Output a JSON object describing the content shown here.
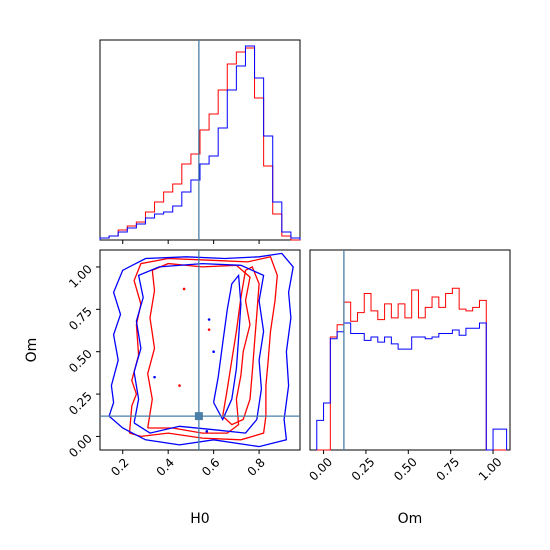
{
  "chart_data": [
    {
      "type": "histogram",
      "panel": "top-left",
      "parameter": "H0",
      "x_range": [
        0.1,
        0.98
      ],
      "truth_line": 0.535,
      "bin_edges": [
        0.1,
        0.14,
        0.18,
        0.22,
        0.26,
        0.3,
        0.34,
        0.38,
        0.42,
        0.46,
        0.5,
        0.54,
        0.58,
        0.62,
        0.66,
        0.7,
        0.74,
        0.78,
        0.82,
        0.86,
        0.9,
        0.94,
        0.98
      ],
      "series": [
        {
          "color": "#ff0000",
          "values": [
            0.01,
            0.02,
            0.05,
            0.07,
            0.09,
            0.14,
            0.19,
            0.24,
            0.28,
            0.38,
            0.43,
            0.55,
            0.63,
            0.75,
            0.88,
            0.94,
            0.96,
            0.71,
            0.37,
            0.13,
            0.02,
            0.0
          ]
        },
        {
          "color": "#0000ff",
          "values": [
            0.01,
            0.02,
            0.04,
            0.06,
            0.08,
            0.11,
            0.13,
            0.14,
            0.17,
            0.24,
            0.3,
            0.38,
            0.42,
            0.56,
            0.75,
            0.87,
            0.97,
            0.81,
            0.52,
            0.19,
            0.04,
            0.01
          ]
        }
      ]
    },
    {
      "type": "contour",
      "panel": "bottom-left",
      "x_param": "H0",
      "y_param": "Om",
      "x_range": [
        0.1,
        0.98
      ],
      "y_range": [
        -0.08,
        1.1
      ],
      "xticks": [
        "0.2",
        "0.4",
        "0.6",
        "0.8"
      ],
      "yticks": [
        "0.00",
        "0.25",
        "0.50",
        "0.75",
        "1.00"
      ],
      "xlabel": "H0",
      "ylabel": "Om",
      "truth_point": [
        0.535,
        0.12
      ],
      "series": [
        {
          "color": "#ff0000",
          "contours": [
            [
              [
                0.23,
                0.02
              ],
              [
                0.24,
                0.18
              ],
              [
                0.26,
                0.25
              ],
              [
                0.24,
                0.33
              ],
              [
                0.27,
                0.48
              ],
              [
                0.26,
                0.66
              ],
              [
                0.28,
                0.78
              ],
              [
                0.25,
                0.92
              ],
              [
                0.28,
                1.02
              ],
              [
                0.4,
                1.05
              ],
              [
                0.58,
                1.04
              ],
              [
                0.75,
                1.03
              ],
              [
                0.85,
                1.06
              ],
              [
                0.88,
                0.95
              ],
              [
                0.87,
                0.8
              ],
              [
                0.85,
                0.62
              ],
              [
                0.84,
                0.45
              ],
              [
                0.83,
                0.3
              ],
              [
                0.83,
                0.12
              ],
              [
                0.82,
                0.02
              ],
              [
                0.72,
                -0.02
              ],
              [
                0.55,
                -0.01
              ],
              [
                0.4,
                0.02
              ],
              [
                0.28,
                0.0
              ],
              [
                0.23,
                0.02
              ]
            ],
            [
              [
                0.31,
                0.05
              ],
              [
                0.33,
                0.22
              ],
              [
                0.31,
                0.37
              ],
              [
                0.34,
                0.52
              ],
              [
                0.32,
                0.7
              ],
              [
                0.34,
                0.86
              ],
              [
                0.33,
                0.98
              ],
              [
                0.4,
                1.02
              ],
              [
                0.55,
                1.0
              ],
              [
                0.7,
                1.01
              ],
              [
                0.76,
                0.94
              ],
              [
                0.74,
                0.8
              ],
              [
                0.76,
                0.66
              ],
              [
                0.73,
                0.5
              ],
              [
                0.72,
                0.36
              ],
              [
                0.7,
                0.22
              ],
              [
                0.71,
                0.07
              ],
              [
                0.66,
                0.02
              ],
              [
                0.55,
                0.02
              ],
              [
                0.42,
                0.05
              ],
              [
                0.31,
                0.05
              ]
            ],
            [
              [
                0.64,
                0.12
              ],
              [
                0.66,
                0.28
              ],
              [
                0.68,
                0.45
              ],
              [
                0.7,
                0.62
              ],
              [
                0.72,
                0.82
              ],
              [
                0.74,
                0.98
              ],
              [
                0.77,
                1.0
              ],
              [
                0.8,
                0.9
              ],
              [
                0.79,
                0.72
              ],
              [
                0.78,
                0.55
              ],
              [
                0.77,
                0.38
              ],
              [
                0.76,
                0.22
              ],
              [
                0.73,
                0.1
              ],
              [
                0.68,
                0.07
              ],
              [
                0.64,
                0.12
              ]
            ]
          ]
        },
        {
          "color": "#0000ff",
          "contours": [
            [
              [
                0.14,
                0.12
              ],
              [
                0.16,
                0.2
              ],
              [
                0.15,
                0.3
              ],
              [
                0.18,
                0.45
              ],
              [
                0.16,
                0.6
              ],
              [
                0.19,
                0.72
              ],
              [
                0.16,
                0.85
              ],
              [
                0.2,
                0.98
              ],
              [
                0.3,
                1.05
              ],
              [
                0.48,
                1.06
              ],
              [
                0.65,
                1.05
              ],
              [
                0.8,
                1.06
              ],
              [
                0.9,
                1.08
              ],
              [
                0.95,
                1.0
              ],
              [
                0.93,
                0.85
              ],
              [
                0.94,
                0.7
              ],
              [
                0.92,
                0.5
              ],
              [
                0.93,
                0.3
              ],
              [
                0.91,
                0.1
              ],
              [
                0.92,
                -0.02
              ],
              [
                0.8,
                -0.06
              ],
              [
                0.6,
                -0.02
              ],
              [
                0.45,
                -0.05
              ],
              [
                0.3,
                -0.02
              ],
              [
                0.2,
                0.05
              ],
              [
                0.14,
                0.12
              ]
            ],
            [
              [
                0.25,
                0.08
              ],
              [
                0.27,
                0.22
              ],
              [
                0.25,
                0.38
              ],
              [
                0.28,
                0.52
              ],
              [
                0.26,
                0.68
              ],
              [
                0.29,
                0.82
              ],
              [
                0.27,
                0.95
              ],
              [
                0.36,
                1.0
              ],
              [
                0.55,
                1.02
              ],
              [
                0.72,
                1.01
              ],
              [
                0.82,
                0.95
              ],
              [
                0.8,
                0.8
              ],
              [
                0.82,
                0.62
              ],
              [
                0.8,
                0.45
              ],
              [
                0.81,
                0.28
              ],
              [
                0.79,
                0.1
              ],
              [
                0.74,
                0.02
              ],
              [
                0.6,
                0.04
              ],
              [
                0.45,
                0.06
              ],
              [
                0.32,
                0.02
              ],
              [
                0.25,
                0.08
              ]
            ],
            [
              [
                0.6,
                0.2
              ],
              [
                0.62,
                0.35
              ],
              [
                0.64,
                0.55
              ],
              [
                0.66,
                0.75
              ],
              [
                0.68,
                0.9
              ],
              [
                0.71,
                0.95
              ],
              [
                0.72,
                0.78
              ],
              [
                0.71,
                0.58
              ],
              [
                0.7,
                0.4
              ],
              [
                0.68,
                0.22
              ],
              [
                0.64,
                0.1
              ],
              [
                0.6,
                0.2
              ]
            ]
          ]
        }
      ]
    },
    {
      "type": "histogram",
      "panel": "bottom-right",
      "parameter": "Om",
      "x_range": [
        -0.08,
        1.1
      ],
      "truth_line": 0.12,
      "xticks": [
        "0.00",
        "0.25",
        "0.50",
        "0.75",
        "1.00"
      ],
      "xlabel": "Om",
      "bin_edges": [
        -0.04,
        0.0,
        0.04,
        0.08,
        0.12,
        0.16,
        0.2,
        0.24,
        0.28,
        0.32,
        0.36,
        0.4,
        0.44,
        0.48,
        0.52,
        0.56,
        0.6,
        0.64,
        0.68,
        0.72,
        0.76,
        0.8,
        0.84,
        0.88,
        0.92,
        0.96,
        1.0,
        1.04,
        1.08
      ],
      "series": [
        {
          "color": "#ff0000",
          "values": [
            0.0,
            0.0,
            0.65,
            0.72,
            0.85,
            0.74,
            0.79,
            0.9,
            0.8,
            0.75,
            0.84,
            0.76,
            0.84,
            0.76,
            0.92,
            0.76,
            0.82,
            0.88,
            0.82,
            0.9,
            0.93,
            0.81,
            0.8,
            0.82,
            0.86,
            0.0,
            0.0,
            0.0
          ]
        },
        {
          "color": "#0000ff",
          "values": [
            0.17,
            0.27,
            0.64,
            0.68,
            0.73,
            0.67,
            0.67,
            0.63,
            0.65,
            0.62,
            0.65,
            0.61,
            0.58,
            0.58,
            0.65,
            0.65,
            0.64,
            0.65,
            0.67,
            0.67,
            0.69,
            0.66,
            0.7,
            0.7,
            0.73,
            0.0,
            0.12,
            0.12
          ]
        }
      ]
    }
  ],
  "style": {
    "truth_color": "#4a7fa8",
    "red": "#ff0000",
    "blue": "#0000ff"
  }
}
